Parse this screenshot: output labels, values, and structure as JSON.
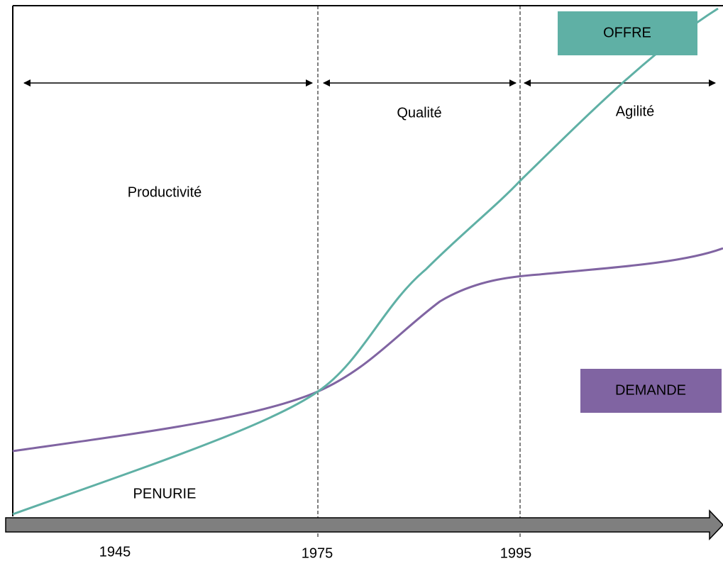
{
  "curve_labels": {
    "offre": "OFFRE",
    "demande": "DEMANDE"
  },
  "periods": [
    "Productivité",
    "Qualité",
    "Agilité"
  ],
  "note": "PENURIE",
  "years": [
    "1945",
    "1975",
    "1995"
  ]
}
